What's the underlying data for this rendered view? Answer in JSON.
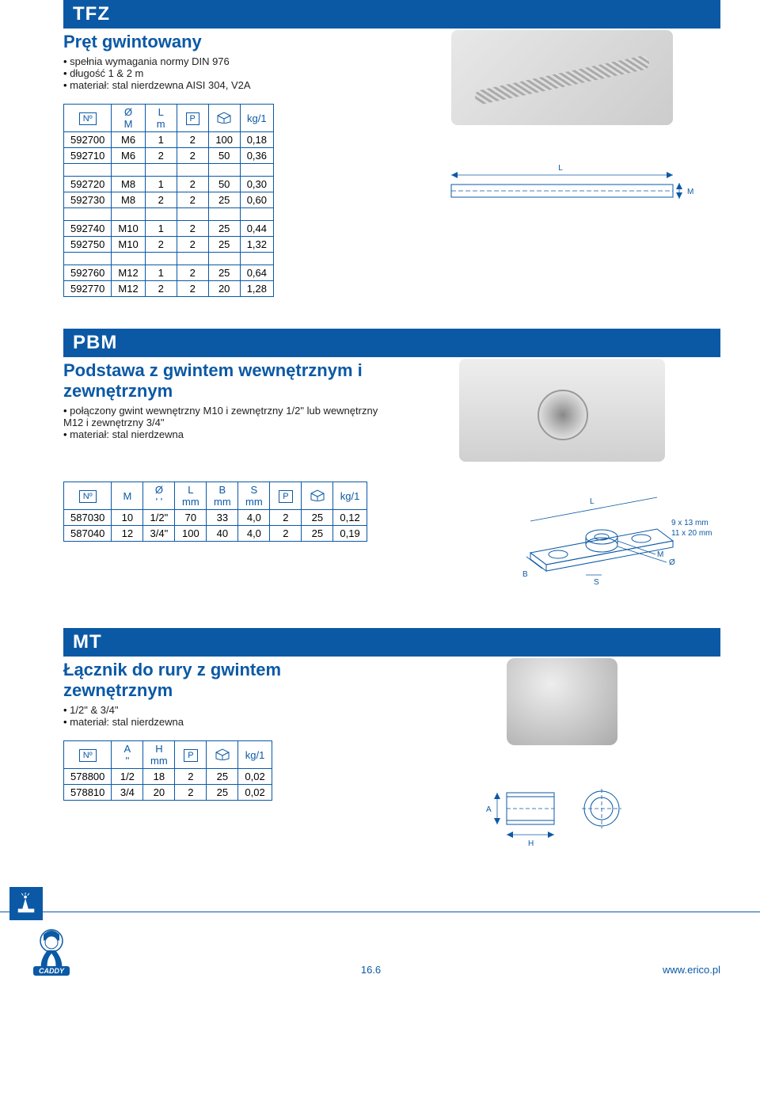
{
  "sections": {
    "tfz": {
      "code": "TFZ",
      "title": "Pręt gwintowany",
      "bullets": [
        "spełnia wymagania normy DIN 976",
        "długość 1 & 2 m",
        "materiał: stal nierdzewna AISI 304, V2A"
      ],
      "headers": [
        "Nº",
        "Ø\nM",
        "L\nm",
        "P",
        "pack",
        "kg/1"
      ],
      "groups": [
        [
          [
            "592700",
            "M6",
            "1",
            "2",
            "100",
            "0,18"
          ],
          [
            "592710",
            "M6",
            "2",
            "2",
            "50",
            "0,36"
          ]
        ],
        [
          [
            "592720",
            "M8",
            "1",
            "2",
            "50",
            "0,30"
          ],
          [
            "592730",
            "M8",
            "2",
            "2",
            "25",
            "0,60"
          ]
        ],
        [
          [
            "592740",
            "M10",
            "1",
            "2",
            "25",
            "0,44"
          ],
          [
            "592750",
            "M10",
            "2",
            "2",
            "25",
            "1,32"
          ]
        ],
        [
          [
            "592760",
            "M12",
            "1",
            "2",
            "25",
            "0,64"
          ],
          [
            "592770",
            "M12",
            "2",
            "2",
            "20",
            "1,28"
          ]
        ]
      ],
      "diagram": {
        "L": "L",
        "M": "M"
      }
    },
    "pbm": {
      "code": "PBM",
      "title": "Podstawa z gwintem wewnętrznym i zewnętrznym",
      "bullets": [
        "połączony gwint wewnętrzny M10 i zewnętrzny 1/2\" lub wewnętrzny M12 i zewnętrzny 3/4\"",
        "materiał: stal nierdzewna"
      ],
      "headers": [
        "Nº",
        "M",
        "Ø\n' '",
        "L\nmm",
        "B\nmm",
        "S\nmm",
        "P",
        "pack",
        "kg/1"
      ],
      "rows": [
        [
          "587030",
          "10",
          "1/2\"",
          "70",
          "33",
          "4,0",
          "2",
          "25",
          "0,12"
        ],
        [
          "587040",
          "12",
          "3/4\"",
          "100",
          "40",
          "4,0",
          "2",
          "25",
          "0,19"
        ]
      ],
      "diagram": {
        "L": "L",
        "B": "B",
        "S": "S",
        "M": "M",
        "O": "Ø",
        "note1": "9 x 13 mm",
        "note2": "11 x 20 mm"
      }
    },
    "mt": {
      "code": "MT",
      "title": "Łącznik do rury z gwintem zewnętrznym",
      "bullets": [
        "1/2\" & 3/4\"",
        "materiał: stal nierdzewna"
      ],
      "headers": [
        "Nº",
        "A\n''",
        "H\nmm",
        "P",
        "pack",
        "kg/1"
      ],
      "rows": [
        [
          "578800",
          "1/2",
          "18",
          "2",
          "25",
          "0,02"
        ],
        [
          "578810",
          "3/4",
          "20",
          "2",
          "25",
          "0,02"
        ]
      ],
      "diagram": {
        "A": "A",
        "H": "H"
      }
    }
  },
  "footer": {
    "page": "16.6",
    "url": "www.erico.pl",
    "brand": "CADDY"
  },
  "colors": {
    "brand": "#0b59a5",
    "white": "#ffffff",
    "text": "#000000"
  }
}
